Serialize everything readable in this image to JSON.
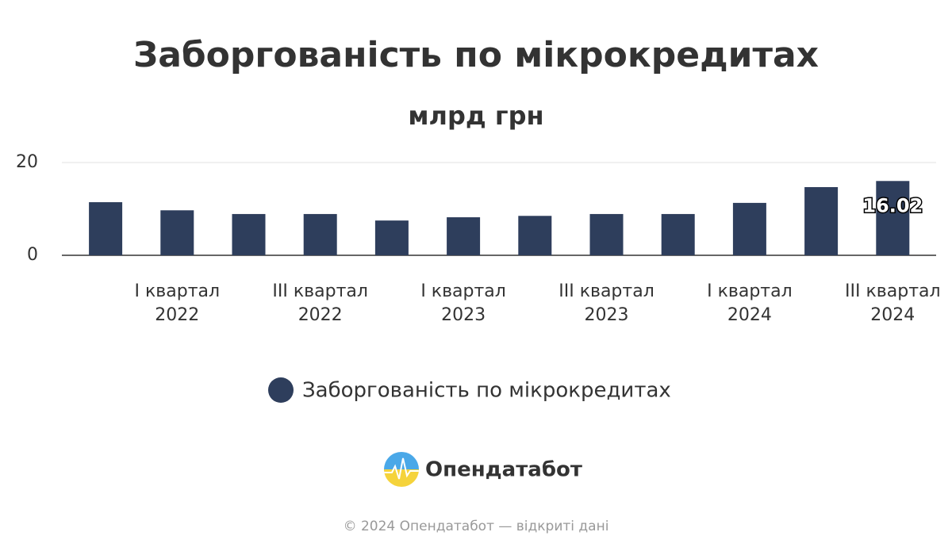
{
  "chart_data": {
    "type": "bar",
    "title": "Заборгованість по мікрокредитах",
    "subtitle": "млрд грн",
    "categories": [
      null,
      [
        "I квартал",
        "2022"
      ],
      null,
      [
        "III квартал",
        "2022"
      ],
      null,
      [
        "I квартал",
        "2023"
      ],
      null,
      [
        "III квартал",
        "2023"
      ],
      null,
      [
        "I квартал",
        "2024"
      ],
      null,
      [
        "III квартал",
        "2024"
      ]
    ],
    "series": [
      {
        "name": "Заборгованість по мікрокредитах",
        "color": "#2e3e5c",
        "values": [
          11.45,
          9.7,
          8.9,
          8.9,
          7.5,
          8.2,
          8.5,
          8.9,
          8.9,
          11.3,
          14.7,
          16.02
        ],
        "value_labels": [
          null,
          null,
          null,
          null,
          null,
          null,
          null,
          null,
          null,
          null,
          null,
          "16.02"
        ]
      }
    ],
    "ylim": [
      0,
      20
    ],
    "yticks": [
      0,
      20
    ],
    "grid": true
  },
  "logo": {
    "text": "Опендатабот"
  },
  "footer": "© 2024 Опендатабот — відкриті дані"
}
